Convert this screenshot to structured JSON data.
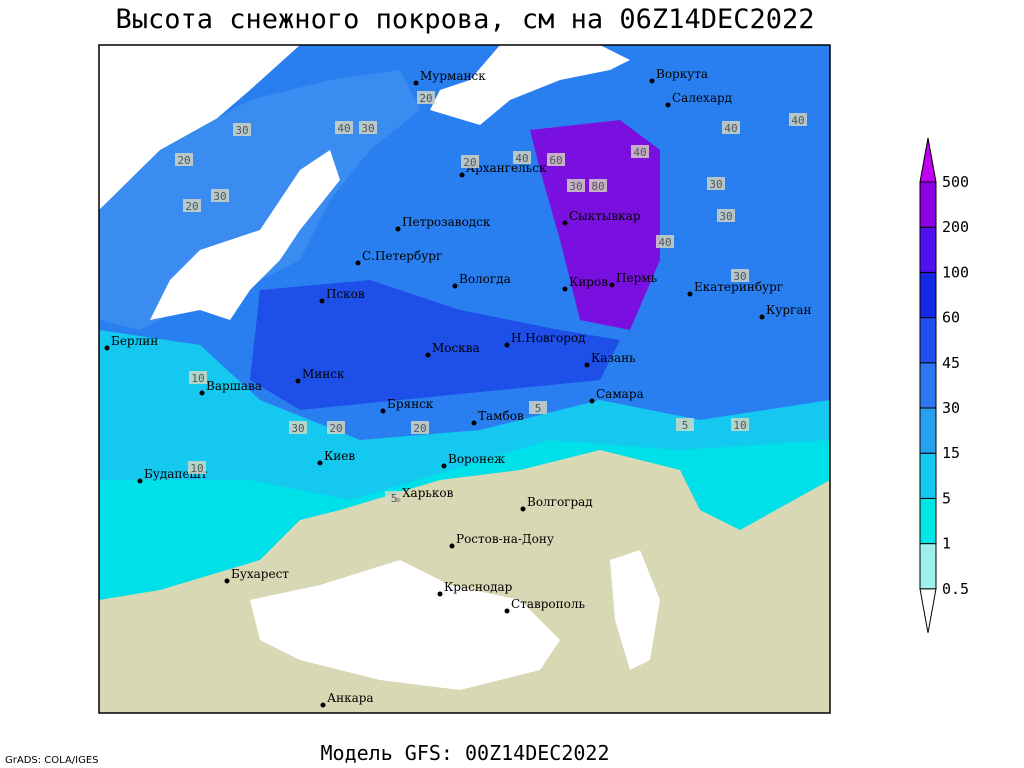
{
  "header": {
    "title": "Высота снежного покрова, см на 06Z14DEC2022"
  },
  "footer": {
    "model": "Модель GFS: 00Z14DEC2022",
    "credit": "GrADS: COLA/IGES"
  },
  "legend": {
    "levels": [
      0.5,
      1,
      5,
      15,
      30,
      45,
      60,
      100,
      200,
      500
    ],
    "colors": [
      "#ffffff",
      "#a0f0f0",
      "#00e6e6",
      "#14c8f0",
      "#28a0f0",
      "#2d78f0",
      "#1e50f0",
      "#1428e6",
      "#5010f0",
      "#8c00e6",
      "#c000f0"
    ]
  },
  "map": {
    "cities": [
      "Мурманск",
      "Воркута",
      "Салехард",
      "Архангельск",
      "Сыктывкар",
      "Петрозаводск",
      "С.Петербург",
      "Вологда",
      "Киров",
      "Пермь",
      "Екатеринбург",
      "Курган",
      "Псков",
      "Берлин",
      "Москва",
      "Н.Новгород",
      "Казань",
      "Минск",
      "Варшава",
      "Брянск",
      "Тамбов",
      "Самара",
      "Киев",
      "Воронеж",
      "Будапешт",
      "Харьков",
      "Волгоград",
      "Ростов-на-Дону",
      "Бухарест",
      "Краснодар",
      "Ставрополь",
      "Анкара"
    ],
    "contour_labels": [
      20,
      30,
      40,
      30,
      20,
      30,
      20,
      20,
      40,
      60,
      80,
      30,
      40,
      30,
      40,
      30,
      40,
      40,
      30,
      10,
      20,
      5,
      5,
      10,
      5,
      10,
      20,
      30
    ]
  }
}
